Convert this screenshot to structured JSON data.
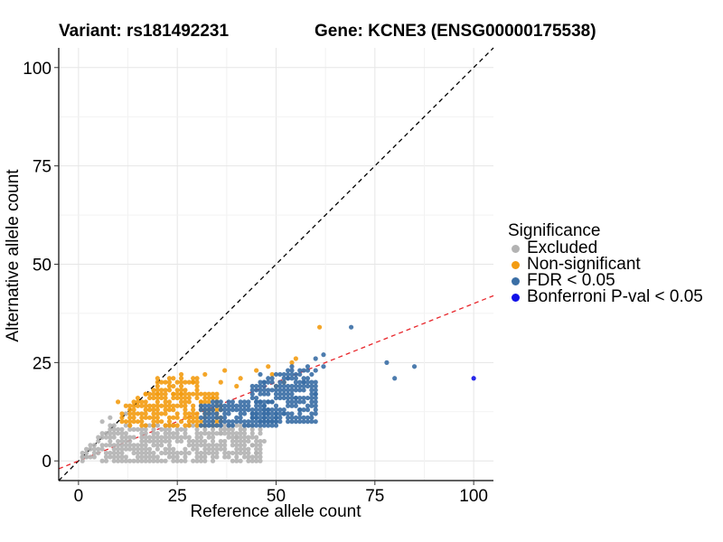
{
  "titles": {
    "variant": "Variant: rs181492231",
    "gene": "Gene: KCNE3 (ENSG00000175538)"
  },
  "legend": {
    "title": "Significance",
    "items": [
      {
        "label": "Excluded",
        "color": "#b3b3b3"
      },
      {
        "label": "Non-significant",
        "color": "#f39c12"
      },
      {
        "label": "FDR < 0.05",
        "color": "#3a6ea5"
      },
      {
        "label": "Bonferroni P-val < 0.05",
        "color": "#1010e8"
      }
    ]
  },
  "chart_data": {
    "type": "scatter",
    "xlabel": "Reference allele count",
    "ylabel": "Alternative allele count",
    "xlim": [
      -5,
      105
    ],
    "ylim": [
      -5,
      105
    ],
    "x_ticks": [
      0,
      25,
      50,
      75,
      100
    ],
    "y_ticks": [
      0,
      25,
      50,
      75,
      100
    ],
    "grid": true,
    "reference_lines": [
      {
        "name": "identity",
        "slope": 1,
        "intercept": 0,
        "color": "#000000",
        "style": "dashed"
      },
      {
        "name": "fit",
        "slope": 0.4,
        "intercept": 0,
        "color": "#e8262b",
        "style": "dashed"
      }
    ],
    "series": [
      {
        "name": "Excluded",
        "color": "#b3b3b3",
        "clusters": [
          {
            "x_min": 1,
            "x_max": 46,
            "y_min": 0,
            "y_max": 9,
            "upper_slope": 1.0
          }
        ],
        "points": [
          [
            45,
            2
          ],
          [
            44,
            4
          ],
          [
            42,
            5
          ],
          [
            40,
            6
          ],
          [
            38,
            8
          ],
          [
            36,
            7
          ],
          [
            33,
            9
          ],
          [
            20,
            9
          ],
          [
            6,
            10
          ],
          [
            8,
            11
          ],
          [
            12,
            12
          ],
          [
            3,
            3
          ],
          [
            2,
            1
          ],
          [
            1,
            1
          ],
          [
            47,
            5
          ]
        ]
      },
      {
        "name": "Non-significant",
        "color": "#f39c12",
        "clusters": [
          {
            "x_min": 11,
            "x_max": 36,
            "y_min": 9,
            "y_max": 17,
            "upper_slope": 1.0
          },
          {
            "x_min": 20,
            "x_max": 30,
            "y_min": 17,
            "y_max": 21,
            "upper_slope": 1.0
          }
        ],
        "points": [
          [
            61,
            34
          ],
          [
            37,
            23
          ],
          [
            45,
            23
          ],
          [
            36,
            20
          ],
          [
            41,
            21
          ],
          [
            32,
            22
          ],
          [
            29,
            20
          ],
          [
            26,
            22
          ],
          [
            52,
            20
          ],
          [
            49,
            22
          ],
          [
            54,
            25
          ],
          [
            55,
            26
          ],
          [
            10,
            15
          ],
          [
            12,
            14
          ],
          [
            14,
            13
          ],
          [
            31,
            15
          ],
          [
            34,
            16
          ],
          [
            50,
            19
          ],
          [
            48,
            24
          ],
          [
            40,
            19
          ],
          [
            17,
            17
          ],
          [
            19,
            18
          ]
        ]
      },
      {
        "name": "FDR < 0.05",
        "color": "#3a6ea5",
        "clusters": [
          {
            "x_min": 31,
            "x_max": 50,
            "y_min": 9,
            "y_max": 15,
            "upper_slope": 0.42
          },
          {
            "x_min": 44,
            "x_max": 60,
            "y_min": 10,
            "y_max": 23,
            "upper_slope": 0.42
          }
        ],
        "points": [
          [
            62,
            27
          ],
          [
            69,
            34
          ],
          [
            62,
            24
          ],
          [
            78,
            25
          ],
          [
            80,
            21
          ],
          [
            85,
            24
          ],
          [
            60,
            26
          ],
          [
            54,
            24
          ],
          [
            58,
            24
          ],
          [
            55,
            16
          ],
          [
            52,
            12
          ],
          [
            56,
            13
          ],
          [
            60,
            17
          ],
          [
            57,
            20
          ],
          [
            53,
            21
          ],
          [
            49,
            18
          ],
          [
            46,
            22
          ],
          [
            47,
            20
          ]
        ]
      },
      {
        "name": "Bonferroni P-val < 0.05",
        "color": "#1010e8",
        "clusters": [],
        "points": [
          [
            100,
            21
          ]
        ]
      }
    ]
  }
}
